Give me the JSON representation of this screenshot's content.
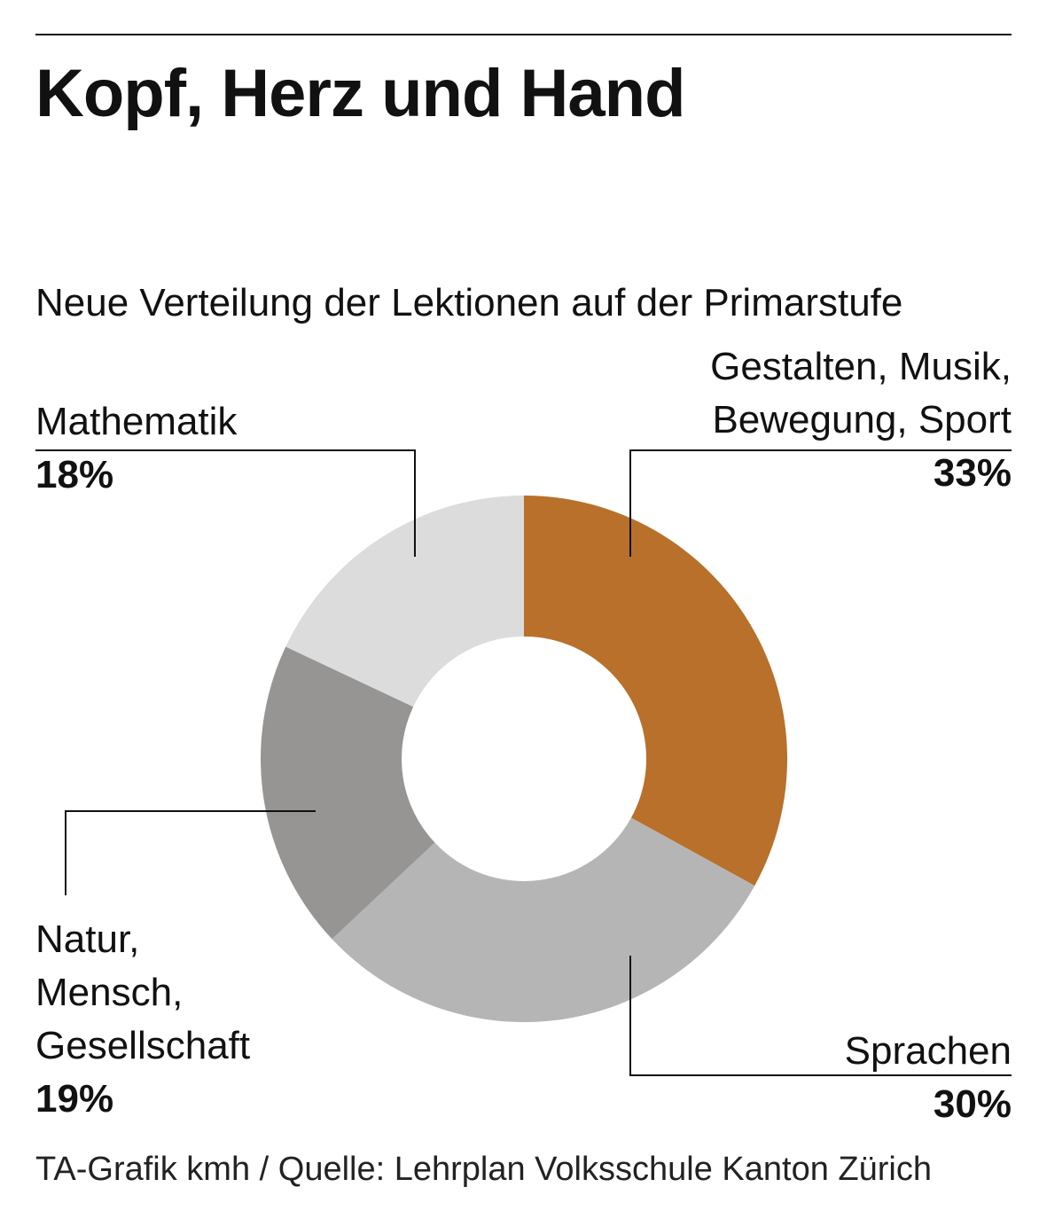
{
  "title": "Kopf, Herz und Hand",
  "subtitle": "Neue Verteilung der Lektionen auf der Primarstufe",
  "source": "TA-Grafik kmh / Quelle: Lehrplan Volksschule Kanton Zürich",
  "labels": {
    "gestalten": {
      "lines": [
        "Gestalten, Musik,",
        "Bewegung, Sport"
      ],
      "pct": "33%"
    },
    "sprachen": {
      "lines": [
        "Sprachen"
      ],
      "pct": "30%"
    },
    "natur": {
      "lines": [
        "Natur,",
        "Mensch,",
        "Gesellschaft"
      ],
      "pct": "19%"
    },
    "math": {
      "lines": [
        "Mathematik"
      ],
      "pct": "18%"
    }
  },
  "chart_data": {
    "type": "pie",
    "donut": true,
    "title": "Kopf, Herz und Hand",
    "subtitle": "Neue Verteilung der Lektionen auf der Primarstufe",
    "categories": [
      "Gestalten, Musik, Bewegung, Sport",
      "Sprachen",
      "Natur, Mensch, Gesellschaft",
      "Mathematik"
    ],
    "values": [
      33,
      30,
      19,
      18
    ],
    "unit": "%",
    "colors": [
      "#b8702a",
      "#b5b5b5",
      "#969593",
      "#dcdcdc"
    ],
    "legend": "none"
  }
}
